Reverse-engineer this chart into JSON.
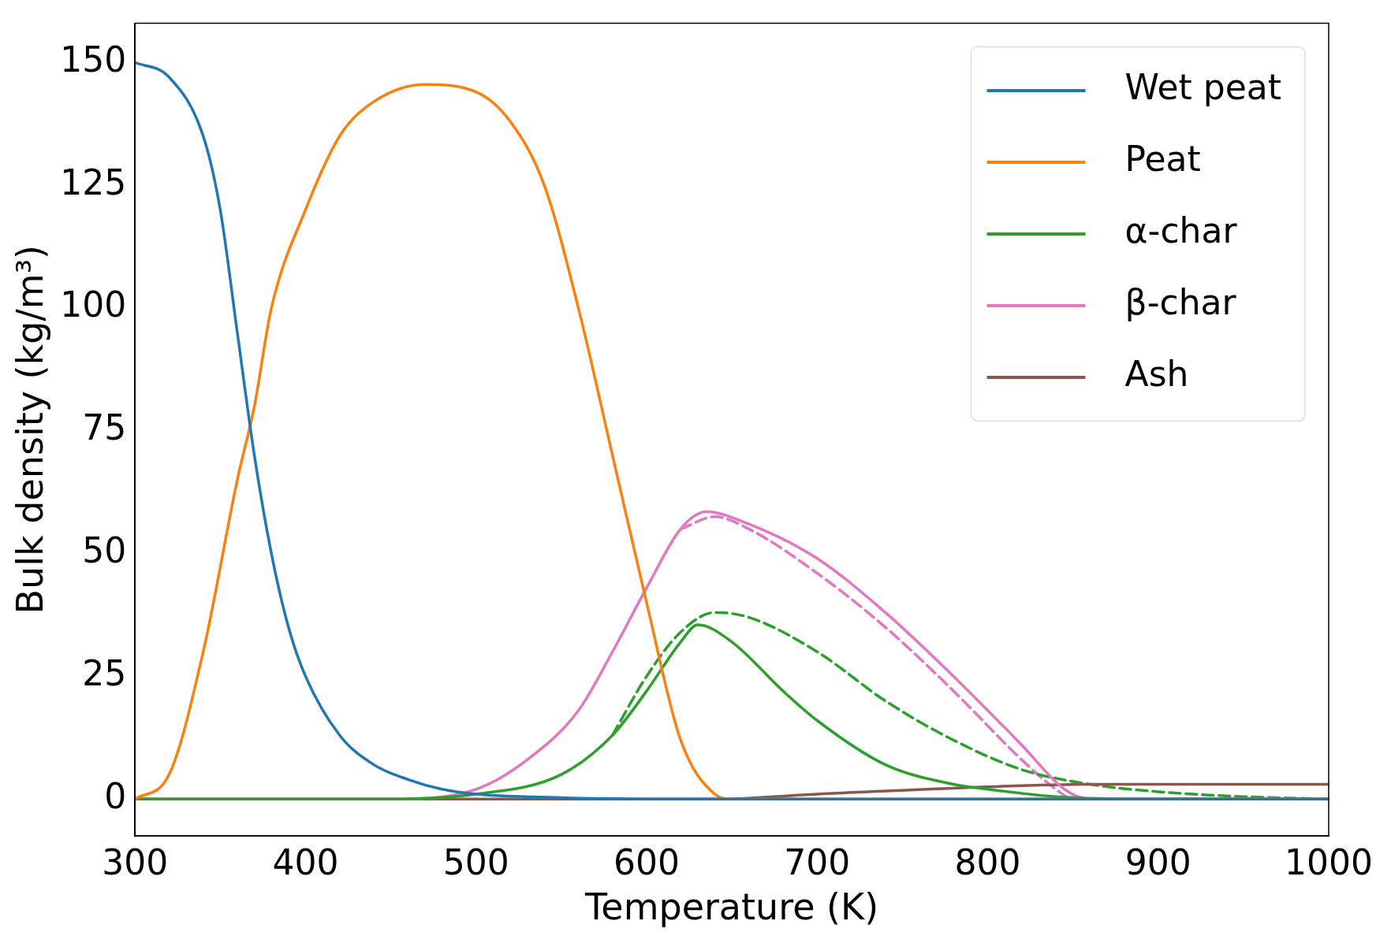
{
  "chart_data": {
    "type": "line",
    "xlabel": "Temperature (K)",
    "ylabel": "Bulk density (kg/m³)",
    "xlim": [
      300,
      1000
    ],
    "xticks": [
      300,
      400,
      500,
      600,
      700,
      800,
      900,
      1000
    ],
    "ylim": [
      -7.5,
      158
    ],
    "yticks": [
      0,
      25,
      50,
      75,
      100,
      125,
      150
    ],
    "grid": false,
    "legend": "top right",
    "marker": "none",
    "series": [
      {
        "name": "Wet peat",
        "color": "#1f77b4",
        "line_style": "solid",
        "x": [
          300,
          320,
          340,
          350,
          360,
          370,
          380,
          390,
          400,
          420,
          440,
          460,
          480,
          500,
          550,
          600,
          1000
        ],
        "values": [
          150,
          147,
          135,
          120,
          95,
          70,
          50,
          35,
          25,
          13,
          7,
          4,
          2,
          1,
          0.3,
          0,
          0
        ]
      },
      {
        "name": "Peat",
        "color": "#ff7f0e",
        "line_style": "solid",
        "x": [
          300,
          320,
          340,
          360,
          370,
          380,
          400,
          420,
          440,
          470,
          500,
          520,
          540,
          560,
          580,
          600,
          620,
          640,
          650,
          1000
        ],
        "values": [
          0,
          5,
          30,
          65,
          80,
          100,
          120,
          135,
          142,
          145.5,
          144,
          138,
          125,
          100,
          70,
          40,
          12,
          1,
          0,
          0
        ]
      },
      {
        "name": "α-char",
        "color": "#2ca02c",
        "line_style": "solid",
        "x": [
          300,
          450,
          500,
          550,
          580,
          600,
          620,
          630,
          650,
          680,
          700,
          740,
          780,
          800,
          840,
          900,
          1000
        ],
        "values": [
          0,
          0,
          1,
          5,
          13,
          22,
          32,
          35.5,
          32,
          22,
          16,
          7,
          3,
          2,
          0.5,
          0,
          0
        ]
      },
      {
        "name": "β-char",
        "color": "#e377c2",
        "line_style": "solid",
        "x": [
          300,
          450,
          500,
          530,
          560,
          580,
          600,
          620,
          635,
          660,
          700,
          740,
          780,
          820,
          845,
          860,
          1000
        ],
        "values": [
          0,
          0,
          2,
          8,
          18,
          30,
          43,
          55,
          58.5,
          56,
          49,
          38,
          25,
          11,
          2,
          0,
          0
        ]
      },
      {
        "name": "Ash",
        "color": "#8c564b",
        "line_style": "solid",
        "x": [
          300,
          640,
          700,
          800,
          860,
          1000
        ],
        "values": [
          0,
          0,
          1,
          2.5,
          3,
          3
        ]
      },
      {
        "color": "#2ca02c",
        "line_style": "dashed",
        "x": [
          580,
          600,
          620,
          640,
          660,
          700,
          740,
          780,
          820,
          860,
          900,
          950,
          1000
        ],
        "values": [
          13,
          25,
          34,
          38,
          37,
          30,
          20,
          12,
          6,
          3,
          1.5,
          0.5,
          0
        ]
      },
      {
        "color": "#e377c2",
        "line_style": "dashed",
        "x": [
          620,
          640,
          660,
          700,
          740,
          780,
          820,
          840,
          850,
          1000
        ],
        "values": [
          55,
          57.5,
          55,
          46,
          35,
          22,
          8,
          2,
          0,
          0
        ]
      }
    ]
  }
}
